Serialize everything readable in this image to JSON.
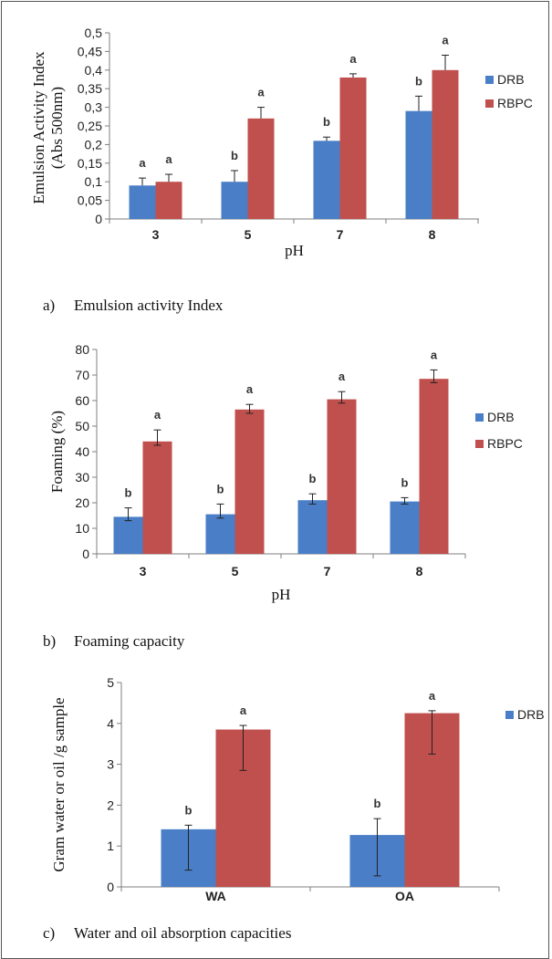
{
  "colors": {
    "DRB": "#4a7ec6",
    "RBPC": "#c0504d",
    "axis": "#7f7f7f",
    "error": "#222222"
  },
  "chart_data": [
    {
      "type": "bar",
      "ylabel": [
        "Emulsion Activity Index",
        "(Abs 500nm)"
      ],
      "xlabel": "pH",
      "categories": [
        "3",
        "5",
        "7",
        "8"
      ],
      "ylim": [
        0,
        0.5
      ],
      "yticks": [
        "0",
        "0,05",
        "0,1",
        "0,15",
        "0,2",
        "0,25",
        "0,3",
        "0,35",
        "0,4",
        "0,45",
        "0,5"
      ],
      "grid": false,
      "legend_position": "right",
      "series": [
        {
          "name": "DRB",
          "values": [
            0.09,
            0.1,
            0.21,
            0.29
          ],
          "err_hi": [
            0.02,
            0.03,
            0.01,
            0.04
          ],
          "err_lo": [
            0.0,
            0.0,
            0.0,
            0.0
          ],
          "letters": [
            "a",
            "b",
            "b",
            "b"
          ]
        },
        {
          "name": "RBPC",
          "values": [
            0.1,
            0.27,
            0.38,
            0.4
          ],
          "err_hi": [
            0.02,
            0.03,
            0.01,
            0.04
          ],
          "err_lo": [
            0.0,
            0.0,
            0.0,
            0.0
          ],
          "letters": [
            "a",
            "a",
            "a",
            "a"
          ]
        }
      ],
      "caption_label": "a)",
      "caption_text": "Emulsion activity Index"
    },
    {
      "type": "bar",
      "ylabel": [
        "Foaming (%)"
      ],
      "xlabel": "pH",
      "categories": [
        "3",
        "5",
        "7",
        "8"
      ],
      "ylim": [
        0,
        80
      ],
      "yticks": [
        "0",
        "10",
        "20",
        "30",
        "40",
        "50",
        "60",
        "70",
        "80"
      ],
      "grid": false,
      "legend_position": "right",
      "series": [
        {
          "name": "DRB",
          "values": [
            14.5,
            15.5,
            21.0,
            20.5
          ],
          "err_hi": [
            3.5,
            4.0,
            2.5,
            1.5
          ],
          "err_lo": [
            1.5,
            1.5,
            1.5,
            1.0
          ],
          "letters": [
            "b",
            "b",
            "b",
            "b"
          ]
        },
        {
          "name": "RBPC",
          "values": [
            44.0,
            56.5,
            60.5,
            68.5
          ],
          "err_hi": [
            4.5,
            2.0,
            3.0,
            3.5
          ],
          "err_lo": [
            1.5,
            1.5,
            1.5,
            1.5
          ],
          "letters": [
            "a",
            "a",
            "a",
            "a"
          ]
        }
      ],
      "caption_label": "b)",
      "caption_text": "Foaming capacity"
    },
    {
      "type": "bar",
      "ylabel": [
        "Gram water or oil /g sample"
      ],
      "xlabel": "",
      "categories": [
        "WA",
        "OA"
      ],
      "ylim": [
        0,
        5
      ],
      "yticks": [
        "0",
        "1",
        "2",
        "3",
        "4",
        "5"
      ],
      "grid": false,
      "legend_position": "right",
      "series": [
        {
          "name": "DRB",
          "values": [
            1.41,
            1.27
          ],
          "err_hi": [
            0.1,
            0.4
          ],
          "err_lo": [
            1.0,
            1.0
          ],
          "letters": [
            "b",
            "b"
          ]
        },
        {
          "name": "",
          "values": [
            3.85,
            4.25
          ],
          "err_hi": [
            0.1,
            0.06
          ],
          "err_lo": [
            1.0,
            1.0
          ],
          "letters": [
            "a",
            "a"
          ]
        }
      ],
      "caption_label": "c)",
      "caption_text": "Water and oil absorption capacities"
    }
  ]
}
